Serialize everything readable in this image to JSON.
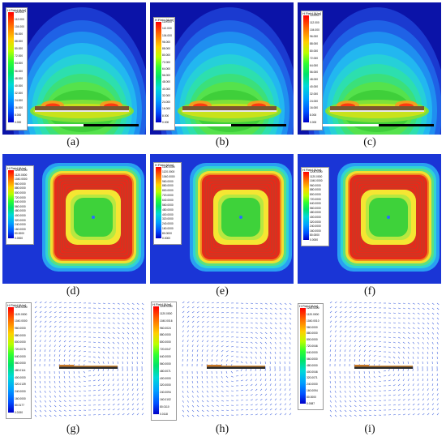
{
  "captions": [
    "(a)",
    "(b)",
    "(c)",
    "(d)",
    "(e)",
    "(f)",
    "(g)",
    "(h)",
    "(i)"
  ],
  "legend_title_row1": "H Field [A/m]",
  "legend_title_rows23": "H Field [A/m]",
  "legend_ticks_a": [
    "120.000",
    "112.000",
    "104.000",
    "96.000",
    "88.000",
    "80.000",
    "72.000",
    "64.000",
    "56.000",
    "48.000",
    "40.000",
    "32.000",
    "24.000",
    "16.000",
    "8.000",
    "0.000"
  ],
  "legend_ticks_b": [
    "120.000",
    "112.000",
    "104.000",
    "96.000",
    "88.000",
    "80.000",
    "72.000",
    "64.000",
    "56.000",
    "48.000",
    "40.000",
    "32.000",
    "24.000",
    "16.000",
    "8.000",
    "0.000"
  ],
  "legend_ticks_c": [
    "120.000",
    "112.000",
    "104.000",
    "96.000",
    "88.000",
    "80.000",
    "72.000",
    "64.000",
    "56.000",
    "48.000",
    "40.000",
    "32.000",
    "24.000",
    "16.000",
    "8.000",
    "0.000"
  ],
  "legend_ticks_d": [
    "1200.0000",
    "1120.0000",
    "1040.0000",
    "960.0000",
    "880.0000",
    "800.0000",
    "720.0000",
    "640.0000",
    "560.0000",
    "480.0000",
    "400.0000",
    "320.0000",
    "240.0000",
    "160.0000",
    "80.0000",
    "0.0000"
  ],
  "legend_ticks_e": [
    "1200.0000",
    "1120.0000",
    "1040.0000",
    "960.0000",
    "880.0000",
    "800.0000",
    "720.0000",
    "640.0000",
    "560.0000",
    "480.0000",
    "400.0000",
    "320.0000",
    "240.0000",
    "160.0000",
    "80.0000",
    "0.0000"
  ],
  "legend_ticks_f": [
    "1200.0000",
    "1120.0000",
    "1040.0000",
    "960.0000",
    "880.0000",
    "800.0000",
    "720.0000",
    "640.0000",
    "560.0000",
    "480.0000",
    "400.0000",
    "320.0000",
    "240.0000",
    "160.0000",
    "80.0000",
    "0.0000"
  ],
  "legend_ticks_g": [
    "1200.0000",
    "1120.0000",
    "1040.0000",
    "960.0000",
    "880.0000",
    "800.0000",
    "720.0076",
    "640.0000",
    "560.0000",
    "480.0114",
    "400.0000",
    "320.0139",
    "240.0000",
    "160.0000",
    "80.0177",
    "0.0190"
  ],
  "legend_ticks_h": [
    "1200.0000",
    "1120.0000",
    "1040.0016",
    "960.0024",
    "880.0000",
    "800.0000",
    "720.0047",
    "640.0000",
    "560.0000",
    "480.0071",
    "400.0000",
    "320.0000",
    "240.0094",
    "160.0102",
    "80.0110",
    "0.0118"
  ],
  "legend_ticks_i": [
    "1200.0000",
    "1120.0000",
    "1040.0010",
    "960.0000",
    "880.0000",
    "800.0000",
    "720.0046",
    "640.0000",
    "560.0000",
    "480.0000",
    "400.0046",
    "320.0071",
    "240.0000",
    "160.0094",
    "80.0000",
    "0.0087"
  ]
}
